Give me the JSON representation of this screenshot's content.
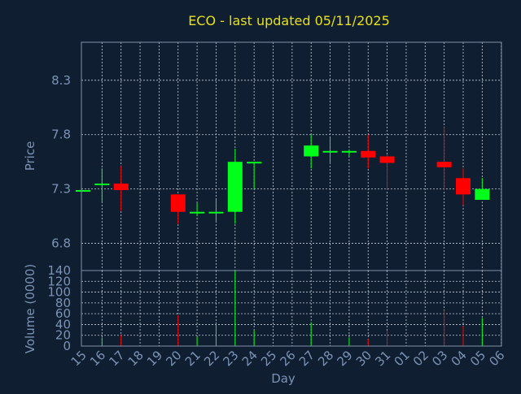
{
  "chart_data": [
    {
      "type": "candlestick",
      "title": "ECO - last updated 05/11/2025",
      "ylabel": "Price",
      "ylim": [
        6.55,
        8.65
      ],
      "yticks": [
        6.8,
        7.3,
        7.8,
        8.3
      ],
      "ytick_labels": [
        "6.8",
        "7.3",
        "7.8",
        "8.3"
      ],
      "grid": true,
      "up_color": "#00ff1a",
      "down_color": "#ff0000",
      "candles": [
        {
          "x": "15",
          "open": 7.29,
          "high": 7.29,
          "low": 7.28,
          "close": 7.29
        },
        {
          "x": "16",
          "open": 7.34,
          "high": 7.49,
          "low": 7.18,
          "close": 7.35
        },
        {
          "x": "17",
          "open": 7.35,
          "high": 7.51,
          "low": 7.1,
          "close": 7.29
        },
        {
          "x": "20",
          "open": 7.25,
          "high": 7.25,
          "low": 6.98,
          "close": 7.09
        },
        {
          "x": "21",
          "open": 7.08,
          "high": 7.17,
          "low": 7.05,
          "close": 7.09
        },
        {
          "x": "22",
          "open": 7.08,
          "high": 7.2,
          "low": 6.99,
          "close": 7.09
        },
        {
          "x": "23",
          "open": 7.09,
          "high": 7.67,
          "low": 6.98,
          "close": 7.55
        },
        {
          "x": "24",
          "open": 7.54,
          "high": 7.55,
          "low": 7.3,
          "close": 7.55
        },
        {
          "x": "27",
          "open": 7.6,
          "high": 7.8,
          "low": 7.49,
          "close": 7.7
        },
        {
          "x": "28",
          "open": 7.64,
          "high": 7.77,
          "low": 7.53,
          "close": 7.65
        },
        {
          "x": "29",
          "open": 7.64,
          "high": 7.66,
          "low": 7.6,
          "close": 7.65
        },
        {
          "x": "30",
          "open": 7.65,
          "high": 7.8,
          "low": 7.49,
          "close": 7.59
        },
        {
          "x": "31",
          "open": 7.6,
          "high": 7.62,
          "low": 7.29,
          "close": 7.54
        },
        {
          "x": "03",
          "open": 7.55,
          "high": 7.87,
          "low": 7.29,
          "close": 7.5
        },
        {
          "x": "04",
          "open": 7.4,
          "high": 7.49,
          "low": 7.15,
          "close": 7.25
        },
        {
          "x": "05",
          "open": 7.2,
          "high": 7.4,
          "low": 7.2,
          "close": 7.3
        }
      ]
    },
    {
      "type": "bar",
      "xlabel": "Day",
      "ylabel": "Volume (0000)",
      "ylim": [
        0,
        140
      ],
      "yticks": [
        0,
        20,
        40,
        60,
        80,
        100,
        120,
        140
      ],
      "ytick_labels": [
        "0",
        "20",
        "40",
        "60",
        "80",
        "100",
        "120",
        "140"
      ],
      "categories": [
        "15",
        "16",
        "17",
        "18",
        "19",
        "20",
        "21",
        "22",
        "23",
        "24",
        "25",
        "26",
        "27",
        "28",
        "29",
        "30",
        "31",
        "01",
        "02",
        "03",
        "04",
        "05",
        "06"
      ],
      "values": [
        0,
        16,
        20,
        0,
        0,
        57,
        17,
        44,
        140,
        29,
        0,
        0,
        44,
        2,
        16,
        13,
        29,
        0,
        0,
        66,
        37,
        52,
        0
      ],
      "bar_colors": [
        "#00ff1a",
        "#00ff1a",
        "#ff0000",
        "#00ff1a",
        "#00ff1a",
        "#ff0000",
        "#00ff1a",
        "#00ff1a",
        "#00ff1a",
        "#00ff1a",
        "#00ff1a",
        "#00ff1a",
        "#00ff1a",
        "#00ff1a",
        "#00ff1a",
        "#ff0000",
        "#ff0000",
        "#00ff1a",
        "#00ff1a",
        "#ff0000",
        "#ff0000",
        "#00ff1a",
        "#00ff1a"
      ],
      "grid": true
    }
  ]
}
